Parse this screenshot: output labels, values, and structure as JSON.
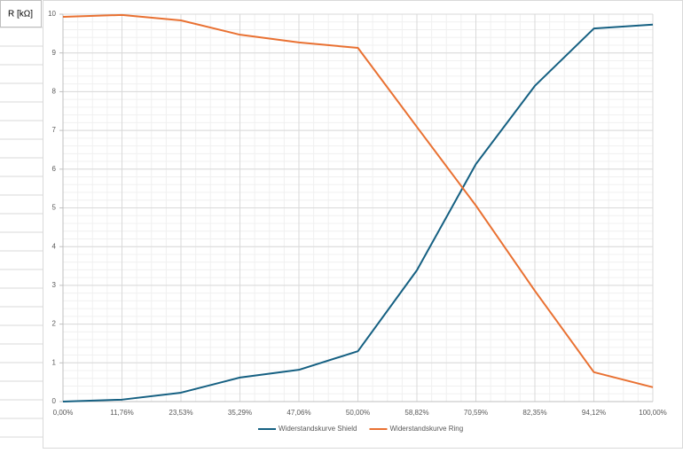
{
  "cell_label": "R [kΩ]",
  "chart_data": {
    "type": "line",
    "categories": [
      "0,00%",
      "11,76%",
      "23,53%",
      "35,29%",
      "47,06%",
      "50,00%",
      "58,82%",
      "70,59%",
      "82,35%",
      "94,12%",
      "100,00%"
    ],
    "series": [
      {
        "name": "Widerstandskurve Shield",
        "color": "#156082",
        "values": [
          0,
          0.05,
          0.23,
          0.62,
          0.82,
          1.3,
          3.39,
          6.13,
          8.15,
          9.63,
          9.73
        ]
      },
      {
        "name": "Widerstandskurve Ring",
        "color": "#e97132",
        "values": [
          9.93,
          9.98,
          9.84,
          9.47,
          9.27,
          9.13,
          7.09,
          5.06,
          2.86,
          0.76,
          0.37
        ]
      }
    ],
    "ylim": [
      0,
      10
    ],
    "yticks": [
      0,
      1,
      2,
      3,
      4,
      5,
      6,
      7,
      8,
      9,
      10
    ],
    "grid": true,
    "legend": "bottom"
  }
}
